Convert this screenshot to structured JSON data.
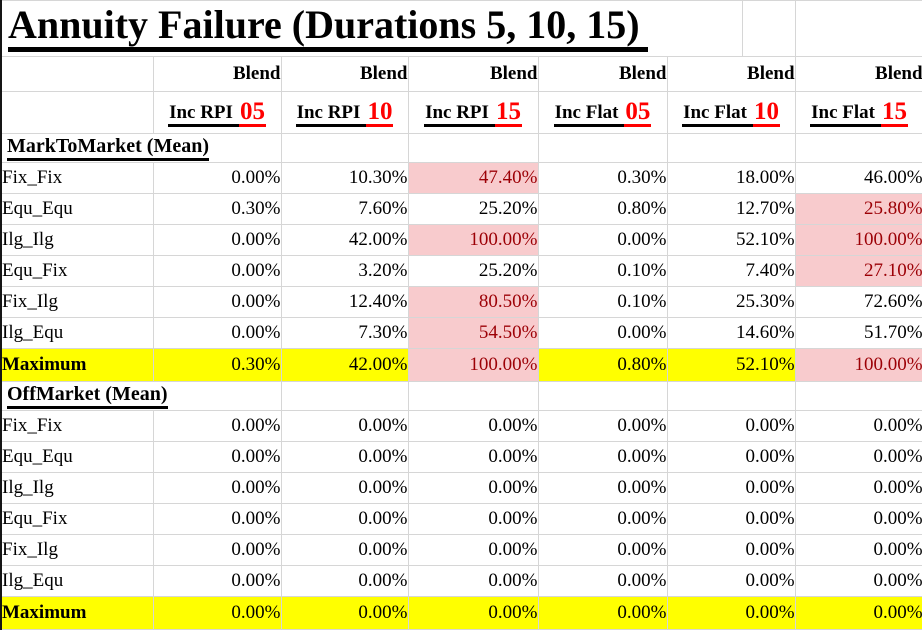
{
  "title": "Annuity Failure (Durations 5, 10, 15)",
  "columns": [
    {
      "group": "Blend",
      "prefix": "Inc RPI",
      "num": "05"
    },
    {
      "group": "Blend",
      "prefix": "Inc RPI",
      "num": "10"
    },
    {
      "group": "Blend",
      "prefix": "Inc RPI",
      "num": "15"
    },
    {
      "group": "Blend",
      "prefix": "Inc Flat",
      "num": "05"
    },
    {
      "group": "Blend",
      "prefix": "Inc Flat",
      "num": "10"
    },
    {
      "group": "Blend",
      "prefix": "Inc Flat",
      "num": "15"
    }
  ],
  "sections": [
    {
      "header": "MarkToMarket (Mean)",
      "rows": [
        {
          "label": "Fix_Fix",
          "values": [
            "0.00%",
            "10.30%",
            "47.40%",
            "0.30%",
            "18.00%",
            "46.00%"
          ],
          "pink": [
            false,
            false,
            true,
            false,
            false,
            false
          ],
          "is_max": false
        },
        {
          "label": "Equ_Equ",
          "values": [
            "0.30%",
            "7.60%",
            "25.20%",
            "0.80%",
            "12.70%",
            "25.80%"
          ],
          "pink": [
            false,
            false,
            false,
            false,
            false,
            true
          ],
          "is_max": false
        },
        {
          "label": "Ilg_Ilg",
          "values": [
            "0.00%",
            "42.00%",
            "100.00%",
            "0.00%",
            "52.10%",
            "100.00%"
          ],
          "pink": [
            false,
            false,
            true,
            false,
            false,
            true
          ],
          "is_max": false
        },
        {
          "label": "Equ_Fix",
          "values": [
            "0.00%",
            "3.20%",
            "25.20%",
            "0.10%",
            "7.40%",
            "27.10%"
          ],
          "pink": [
            false,
            false,
            false,
            false,
            false,
            true
          ],
          "is_max": false
        },
        {
          "label": "Fix_Ilg",
          "values": [
            "0.00%",
            "12.40%",
            "80.50%",
            "0.10%",
            "25.30%",
            "72.60%"
          ],
          "pink": [
            false,
            false,
            true,
            false,
            false,
            false
          ],
          "is_max": false
        },
        {
          "label": "Ilg_Equ",
          "values": [
            "0.00%",
            "7.30%",
            "54.50%",
            "0.00%",
            "14.60%",
            "51.70%"
          ],
          "pink": [
            false,
            false,
            true,
            false,
            false,
            false
          ],
          "is_max": false
        },
        {
          "label": "Maximum",
          "values": [
            "0.30%",
            "42.00%",
            "100.00%",
            "0.80%",
            "52.10%",
            "100.00%"
          ],
          "pink": [
            false,
            false,
            true,
            false,
            false,
            true
          ],
          "is_max": true
        }
      ]
    },
    {
      "header": "OffMarket (Mean)",
      "rows": [
        {
          "label": "Fix_Fix",
          "values": [
            "0.00%",
            "0.00%",
            "0.00%",
            "0.00%",
            "0.00%",
            "0.00%"
          ],
          "pink": [
            false,
            false,
            false,
            false,
            false,
            false
          ],
          "is_max": false
        },
        {
          "label": "Equ_Equ",
          "values": [
            "0.00%",
            "0.00%",
            "0.00%",
            "0.00%",
            "0.00%",
            "0.00%"
          ],
          "pink": [
            false,
            false,
            false,
            false,
            false,
            false
          ],
          "is_max": false
        },
        {
          "label": "Ilg_Ilg",
          "values": [
            "0.00%",
            "0.00%",
            "0.00%",
            "0.00%",
            "0.00%",
            "0.00%"
          ],
          "pink": [
            false,
            false,
            false,
            false,
            false,
            false
          ],
          "is_max": false
        },
        {
          "label": "Equ_Fix",
          "values": [
            "0.00%",
            "0.00%",
            "0.00%",
            "0.00%",
            "0.00%",
            "0.00%"
          ],
          "pink": [
            false,
            false,
            false,
            false,
            false,
            false
          ],
          "is_max": false
        },
        {
          "label": "Fix_Ilg",
          "values": [
            "0.00%",
            "0.00%",
            "0.00%",
            "0.00%",
            "0.00%",
            "0.00%"
          ],
          "pink": [
            false,
            false,
            false,
            false,
            false,
            false
          ],
          "is_max": false
        },
        {
          "label": "Ilg_Equ",
          "values": [
            "0.00%",
            "0.00%",
            "0.00%",
            "0.00%",
            "0.00%",
            "0.00%"
          ],
          "pink": [
            false,
            false,
            false,
            false,
            false,
            false
          ],
          "is_max": false
        },
        {
          "label": "Maximum",
          "values": [
            "0.00%",
            "0.00%",
            "0.00%",
            "0.00%",
            "0.00%",
            "0.00%"
          ],
          "pink": [
            false,
            false,
            false,
            false,
            false,
            false
          ],
          "is_max": true
        }
      ]
    }
  ],
  "colors": {
    "header_number_red": "#FF0000",
    "highlight_bad_background": "#F8CBCD",
    "highlight_bad_text": "#9C0006",
    "maximum_row_background": "#FFFF00",
    "gridline": "#D6D6D6",
    "text": "#000000"
  }
}
